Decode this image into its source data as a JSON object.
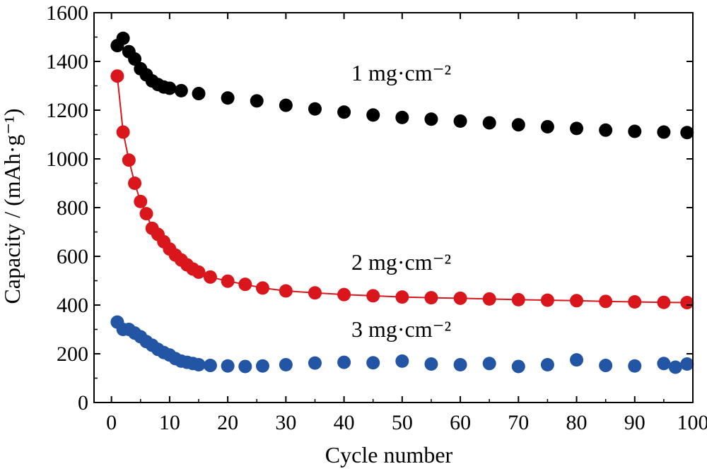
{
  "chart_data": {
    "type": "scatter",
    "xlabel": "Cycle number",
    "ylabel": "Capacity / (mAh·g⁻¹)",
    "xlim": [
      -3,
      100
    ],
    "ylim": [
      0,
      1600
    ],
    "x_ticks": [
      "0",
      "10",
      "20",
      "30",
      "40",
      "50",
      "60",
      "70",
      "80",
      "90",
      "100"
    ],
    "y_ticks": [
      "0",
      "200",
      "400",
      "600",
      "800",
      "1000",
      "1200",
      "1400",
      "1600"
    ],
    "grid": false,
    "legend": "none",
    "series": [
      {
        "name": "1 mg·cm⁻²",
        "color": "#000000",
        "connected": false,
        "x": [
          1,
          2,
          3,
          4,
          5,
          6,
          7,
          8,
          9,
          10,
          12,
          15,
          20,
          25,
          30,
          35,
          40,
          45,
          50,
          55,
          60,
          65,
          70,
          75,
          80,
          85,
          90,
          95,
          99
        ],
        "y": [
          1465,
          1495,
          1440,
          1410,
          1370,
          1345,
          1320,
          1305,
          1295,
          1290,
          1280,
          1268,
          1250,
          1238,
          1220,
          1205,
          1192,
          1180,
          1170,
          1163,
          1155,
          1148,
          1140,
          1132,
          1125,
          1118,
          1113,
          1110,
          1108
        ]
      },
      {
        "name": "2 mg·cm⁻²",
        "color": "#d9161c",
        "connected": true,
        "x": [
          1,
          2,
          3,
          4,
          5,
          6,
          7,
          8,
          9,
          10,
          11,
          12,
          13,
          14,
          15,
          17,
          20,
          23,
          26,
          30,
          35,
          40,
          45,
          50,
          55,
          60,
          65,
          70,
          75,
          80,
          85,
          90,
          95,
          99
        ],
        "y": [
          1340,
          1110,
          995,
          900,
          825,
          775,
          715,
          690,
          660,
          630,
          605,
          585,
          565,
          548,
          535,
          515,
          498,
          485,
          470,
          458,
          450,
          443,
          438,
          433,
          430,
          428,
          425,
          422,
          420,
          418,
          415,
          413,
          411,
          410
        ]
      },
      {
        "name": "3 mg·cm⁻²",
        "color": "#2355a5",
        "connected": false,
        "x": [
          1,
          2,
          3,
          4,
          5,
          6,
          7,
          8,
          9,
          10,
          11,
          12,
          13,
          14,
          15,
          17,
          20,
          23,
          26,
          30,
          35,
          40,
          45,
          50,
          55,
          60,
          65,
          70,
          75,
          80,
          85,
          90,
          95,
          97,
          99
        ],
        "y": [
          330,
          300,
          300,
          285,
          270,
          250,
          235,
          218,
          205,
          195,
          180,
          170,
          165,
          160,
          155,
          152,
          150,
          148,
          150,
          155,
          162,
          165,
          163,
          170,
          158,
          155,
          160,
          148,
          155,
          175,
          152,
          150,
          160,
          145,
          158
        ]
      }
    ]
  }
}
